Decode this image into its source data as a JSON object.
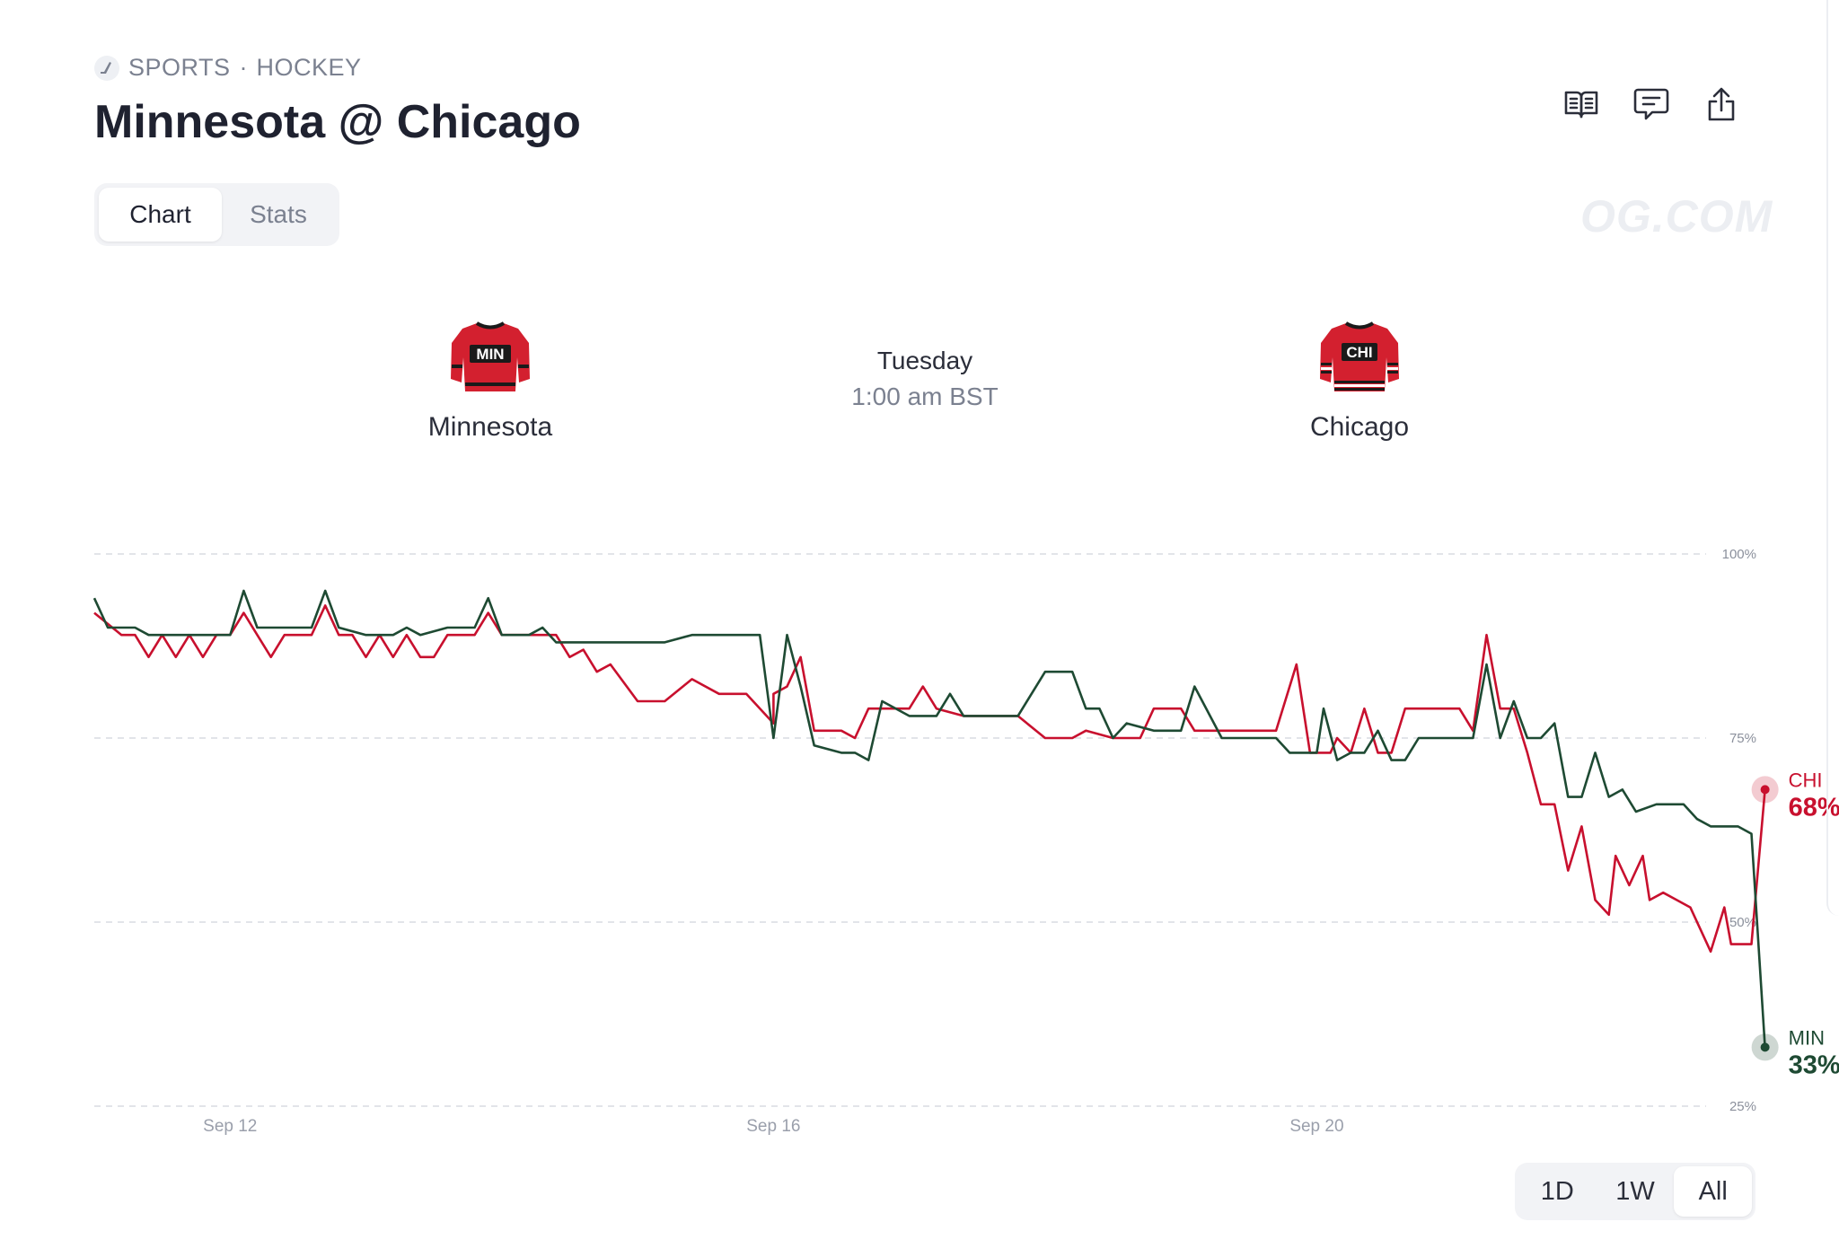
{
  "breadcrumb": {
    "category": "SPORTS",
    "separator": "·",
    "subcategory": "HOCKEY"
  },
  "title": "Minnesota @ Chicago",
  "tabs": {
    "chart": "Chart",
    "stats": "Stats",
    "active": "Chart"
  },
  "watermark": "OG.COM",
  "teams": {
    "away": {
      "name": "Minnesota",
      "jersey_text": "MIN",
      "color": "#1e4a33"
    },
    "home": {
      "name": "Chicago",
      "jersey_text": "CHI",
      "color": "#c8102e"
    }
  },
  "game": {
    "day": "Tuesday",
    "time": "1:00 am BST"
  },
  "icons": [
    "hockey-icon",
    "book-icon",
    "comment-icon",
    "share-icon"
  ],
  "ranges": [
    "1D",
    "1W",
    "All"
  ],
  "active_range": "All",
  "chart_data": {
    "type": "line",
    "x_ticks": [
      "Sep 12",
      "Sep 16",
      "Sep 20"
    ],
    "x_tick_values": [
      12,
      16,
      20
    ],
    "x_range": [
      11,
      22.8
    ],
    "y_ticks": [
      100,
      75,
      50,
      25
    ],
    "y_tick_labels": [
      "100%",
      "75%",
      "50%",
      "25%"
    ],
    "ylim": [
      25,
      100
    ],
    "grid": true,
    "series": [
      {
        "name": "CHI",
        "end_label": "68%",
        "color": "#c8102e",
        "points": [
          [
            11.0,
            92
          ],
          [
            11.2,
            89
          ],
          [
            11.3,
            89
          ],
          [
            11.4,
            86
          ],
          [
            11.5,
            89
          ],
          [
            11.6,
            86
          ],
          [
            11.7,
            89
          ],
          [
            11.8,
            86
          ],
          [
            11.9,
            89
          ],
          [
            12.0,
            89
          ],
          [
            12.1,
            92
          ],
          [
            12.2,
            89
          ],
          [
            12.3,
            86
          ],
          [
            12.4,
            89
          ],
          [
            12.5,
            89
          ],
          [
            12.6,
            89
          ],
          [
            12.7,
            93
          ],
          [
            12.8,
            89
          ],
          [
            12.9,
            89
          ],
          [
            13.0,
            86
          ],
          [
            13.1,
            89
          ],
          [
            13.2,
            86
          ],
          [
            13.3,
            89
          ],
          [
            13.4,
            86
          ],
          [
            13.5,
            86
          ],
          [
            13.6,
            89
          ],
          [
            13.8,
            89
          ],
          [
            13.9,
            92
          ],
          [
            14.0,
            89
          ],
          [
            14.4,
            89
          ],
          [
            14.5,
            86
          ],
          [
            14.6,
            87
          ],
          [
            14.7,
            84
          ],
          [
            14.8,
            85
          ],
          [
            15.0,
            80
          ],
          [
            15.2,
            80
          ],
          [
            15.4,
            83
          ],
          [
            15.6,
            81
          ],
          [
            15.8,
            81
          ],
          [
            16.0,
            77
          ],
          [
            16.0,
            81
          ],
          [
            16.1,
            82
          ],
          [
            16.2,
            86
          ],
          [
            16.3,
            76
          ],
          [
            16.5,
            76
          ],
          [
            16.6,
            75
          ],
          [
            16.7,
            79
          ],
          [
            16.9,
            79
          ],
          [
            17.0,
            79
          ],
          [
            17.1,
            82
          ],
          [
            17.2,
            79
          ],
          [
            17.4,
            78
          ],
          [
            17.6,
            78
          ],
          [
            17.8,
            78
          ],
          [
            18.0,
            75
          ],
          [
            18.2,
            75
          ],
          [
            18.3,
            76
          ],
          [
            18.5,
            75
          ],
          [
            18.7,
            75
          ],
          [
            18.8,
            79
          ],
          [
            19.0,
            79
          ],
          [
            19.1,
            76
          ],
          [
            19.3,
            76
          ],
          [
            19.5,
            76
          ],
          [
            19.7,
            76
          ],
          [
            19.85,
            85
          ],
          [
            19.95,
            73
          ],
          [
            20.1,
            73
          ],
          [
            20.15,
            75
          ],
          [
            20.25,
            73
          ],
          [
            20.35,
            79
          ],
          [
            20.45,
            73
          ],
          [
            20.55,
            73
          ],
          [
            20.65,
            79
          ],
          [
            20.9,
            79
          ],
          [
            21.05,
            79
          ],
          [
            21.15,
            76
          ],
          [
            21.25,
            89
          ],
          [
            21.35,
            79
          ],
          [
            21.45,
            79
          ],
          [
            21.55,
            73
          ],
          [
            21.65,
            66
          ],
          [
            21.75,
            66
          ],
          [
            21.85,
            57
          ],
          [
            21.95,
            63
          ],
          [
            22.05,
            53
          ],
          [
            22.15,
            51
          ],
          [
            22.2,
            59
          ],
          [
            22.3,
            55
          ],
          [
            22.4,
            59
          ],
          [
            22.45,
            53
          ],
          [
            22.55,
            54
          ],
          [
            22.65,
            53
          ],
          [
            22.75,
            52
          ],
          [
            22.9,
            46
          ],
          [
            23.0,
            52
          ],
          [
            23.05,
            47
          ],
          [
            23.2,
            47
          ],
          [
            23.3,
            68
          ]
        ]
      },
      {
        "name": "MIN",
        "end_label": "33%",
        "color": "#1e4a33",
        "points": [
          [
            11.0,
            94
          ],
          [
            11.1,
            90
          ],
          [
            11.3,
            90
          ],
          [
            11.4,
            89
          ],
          [
            11.6,
            89
          ],
          [
            11.8,
            89
          ],
          [
            11.9,
            89
          ],
          [
            12.0,
            89
          ],
          [
            12.1,
            95
          ],
          [
            12.2,
            90
          ],
          [
            12.4,
            90
          ],
          [
            12.5,
            90
          ],
          [
            12.6,
            90
          ],
          [
            12.7,
            95
          ],
          [
            12.8,
            90
          ],
          [
            13.0,
            89
          ],
          [
            13.2,
            89
          ],
          [
            13.3,
            90
          ],
          [
            13.4,
            89
          ],
          [
            13.6,
            90
          ],
          [
            13.8,
            90
          ],
          [
            13.9,
            94
          ],
          [
            14.0,
            89
          ],
          [
            14.2,
            89
          ],
          [
            14.3,
            90
          ],
          [
            14.4,
            88
          ],
          [
            14.6,
            88
          ],
          [
            14.8,
            88
          ],
          [
            15.0,
            88
          ],
          [
            15.2,
            88
          ],
          [
            15.4,
            89
          ],
          [
            15.6,
            89
          ],
          [
            15.8,
            89
          ],
          [
            15.9,
            89
          ],
          [
            16.0,
            75
          ],
          [
            16.1,
            89
          ],
          [
            16.2,
            82
          ],
          [
            16.3,
            74
          ],
          [
            16.5,
            73
          ],
          [
            16.6,
            73
          ],
          [
            16.7,
            72
          ],
          [
            16.8,
            80
          ],
          [
            17.0,
            78
          ],
          [
            17.2,
            78
          ],
          [
            17.3,
            81
          ],
          [
            17.4,
            78
          ],
          [
            17.6,
            78
          ],
          [
            17.8,
            78
          ],
          [
            18.0,
            84
          ],
          [
            18.2,
            84
          ],
          [
            18.3,
            79
          ],
          [
            18.4,
            79
          ],
          [
            18.5,
            75
          ],
          [
            18.6,
            77
          ],
          [
            18.8,
            76
          ],
          [
            19.0,
            76
          ],
          [
            19.1,
            82
          ],
          [
            19.3,
            75
          ],
          [
            19.5,
            75
          ],
          [
            19.7,
            75
          ],
          [
            19.8,
            73
          ],
          [
            20.0,
            73
          ],
          [
            20.05,
            79
          ],
          [
            20.15,
            72
          ],
          [
            20.25,
            73
          ],
          [
            20.35,
            73
          ],
          [
            20.45,
            76
          ],
          [
            20.55,
            72
          ],
          [
            20.65,
            72
          ],
          [
            20.75,
            75
          ],
          [
            20.9,
            75
          ],
          [
            21.05,
            75
          ],
          [
            21.15,
            75
          ],
          [
            21.25,
            85
          ],
          [
            21.35,
            75
          ],
          [
            21.45,
            80
          ],
          [
            21.55,
            75
          ],
          [
            21.65,
            75
          ],
          [
            21.75,
            77
          ],
          [
            21.85,
            67
          ],
          [
            21.95,
            67
          ],
          [
            22.05,
            73
          ],
          [
            22.15,
            67
          ],
          [
            22.25,
            68
          ],
          [
            22.35,
            65
          ],
          [
            22.5,
            66
          ],
          [
            22.7,
            66
          ],
          [
            22.8,
            64
          ],
          [
            22.9,
            63
          ],
          [
            23.1,
            63
          ],
          [
            23.2,
            62
          ],
          [
            23.3,
            33
          ]
        ]
      }
    ]
  }
}
